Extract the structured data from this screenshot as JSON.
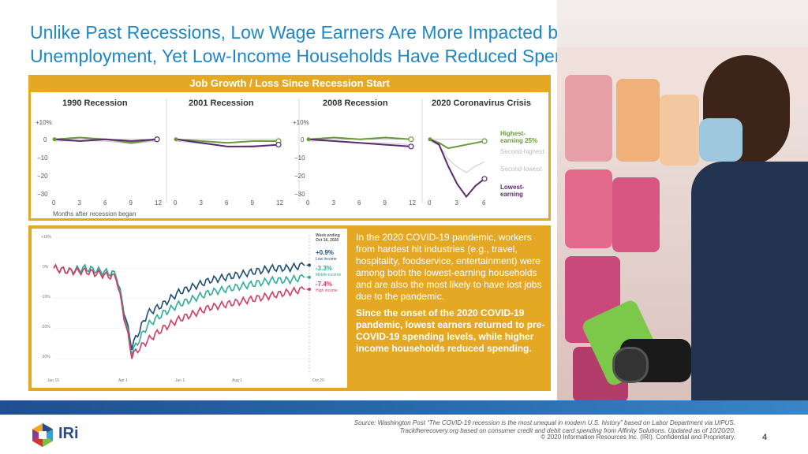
{
  "title": {
    "line1": "Unlike Past Recessions, Low Wage Earners Are More Impacted by",
    "line2": "Unemployment, Yet Low-Income Households Have Reduced Spending Less"
  },
  "job_chart": {
    "title": "Job Growth / Loss Since Recession Start",
    "y_ticks": [
      "+10%",
      "0",
      "−10",
      "−20",
      "−30"
    ],
    "x_axis_caption": "Months after recession began",
    "panels": [
      {
        "title": "1990 Recession",
        "x_ticks": [
          "0",
          "3",
          "6",
          "9",
          "12"
        ]
      },
      {
        "title": "2001 Recession",
        "x_ticks": [
          "0",
          "3",
          "6",
          "9",
          "12"
        ]
      },
      {
        "title": "2008 Recession",
        "x_ticks": [
          "0",
          "3",
          "6",
          "9",
          "12"
        ]
      },
      {
        "title": "2020 Coronavirus Crisis",
        "x_ticks": [
          "0",
          "3",
          "6"
        ]
      }
    ],
    "series_labels": {
      "highest": "Highest-earning 25%",
      "second_highest": "Second-highest",
      "second_lowest": "Second-lowest",
      "lowest": "Lowest-earning"
    },
    "colors": {
      "highest": "#6a9a3a",
      "lowest": "#5b2a6e",
      "middle": "#c8c8c8"
    }
  },
  "chart_data": [
    {
      "type": "line",
      "title": "1990 Recession",
      "x": [
        0,
        3,
        6,
        9,
        12
      ],
      "ylim": [
        -30,
        10
      ],
      "series": [
        {
          "name": "Highest-earning 25%",
          "values": [
            0,
            1,
            0,
            -2,
            0
          ]
        },
        {
          "name": "Lowest-earning",
          "values": [
            0,
            -1,
            0,
            -1,
            0
          ]
        }
      ]
    },
    {
      "type": "line",
      "title": "2001 Recession",
      "x": [
        0,
        3,
        6,
        9,
        12
      ],
      "ylim": [
        -30,
        10
      ],
      "series": [
        {
          "name": "Highest-earning 25%",
          "values": [
            0,
            -1,
            -2,
            -1,
            -1
          ]
        },
        {
          "name": "Lowest-earning",
          "values": [
            0,
            -2,
            -4,
            -4,
            -3
          ]
        }
      ]
    },
    {
      "type": "line",
      "title": "2008 Recession",
      "x": [
        0,
        3,
        6,
        9,
        12
      ],
      "ylim": [
        -30,
        10
      ],
      "series": [
        {
          "name": "Highest-earning 25%",
          "values": [
            0,
            1,
            0,
            1,
            0
          ]
        },
        {
          "name": "Lowest-earning",
          "values": [
            0,
            -1,
            -2,
            -3,
            -4
          ]
        }
      ]
    },
    {
      "type": "line",
      "title": "2020 Coronavirus Crisis",
      "x": [
        0,
        1,
        2,
        3,
        4,
        5,
        6
      ],
      "ylim": [
        -30,
        10
      ],
      "series": [
        {
          "name": "Highest-earning 25%",
          "values": [
            0,
            -2,
            -5,
            -4,
            -3,
            -2,
            -1
          ]
        },
        {
          "name": "Lowest-earning",
          "values": [
            0,
            -3,
            -15,
            -25,
            -32,
            -26,
            -22
          ]
        }
      ]
    },
    {
      "type": "line",
      "title": "",
      "x_ticks": [
        "Jan 15",
        "Apr 1",
        "Jun 1",
        "Aug 1",
        "Oct 20"
      ],
      "y_ticks": [
        "+10%",
        "0%",
        "-10%",
        "-20%",
        "-30%"
      ],
      "series": [
        {
          "name": "Low income",
          "end_value": "+0.9%",
          "color": "#1d4f73",
          "values": [
            0,
            -1,
            0,
            -1,
            -2,
            -26,
            -15,
            -12,
            -8,
            -6,
            -4,
            -3,
            -2,
            -1,
            0,
            0,
            1
          ]
        },
        {
          "name": "Middle income",
          "end_value": "-3.3%",
          "color": "#2fae9b",
          "values": [
            0,
            -1,
            0,
            -1,
            -2,
            -28,
            -19,
            -15,
            -12,
            -10,
            -8,
            -7,
            -6,
            -5,
            -4,
            -4,
            -3
          ]
        },
        {
          "name": "High income",
          "end_value": "-7.4%",
          "color": "#d63a62",
          "values": [
            0,
            -1,
            -1,
            -2,
            -3,
            -29,
            -24,
            -20,
            -17,
            -15,
            -13,
            -12,
            -11,
            -10,
            -9,
            -8,
            -7
          ]
        }
      ]
    }
  ],
  "spending_chart": {
    "legend_header": "Week ending Oct 16, 2020",
    "values": [
      {
        "value": "+0.9%",
        "label": "Low income",
        "color": "#1d4f73"
      },
      {
        "value": "-3.3%",
        "label": "Middle income",
        "color": "#2fae9b"
      },
      {
        "value": "-7.4%",
        "label": "High income",
        "color": "#d63a62"
      }
    ]
  },
  "text_panel": {
    "para1": "In the 2020 COVID-19 pandemic, workers from hardest hit industries (e.g., travel, hospitality, foodservice, entertainment) were among both the lowest-earning households and are also the most likely to have lost jobs due to the pandemic.",
    "para2": "Since the onset of the 2020 COVID-19 pandemic, lowest earners returned to pre-COVID-19 spending levels, while higher income households reduced spending."
  },
  "footer": {
    "source": "Source: Washington Post “The COVID-19 recession is the most unequal in modern U.S. history” based on Labor Department via UIPUS. Tracktherecovery.org based on consumer credit and debit card spending from Affinity Solutions. Updated as of 10/20/20.",
    "copyright": "© 2020 Information Resources Inc. (IRI). Confidential and Proprietary.",
    "page_number": "4",
    "logo_text": "IRi"
  }
}
